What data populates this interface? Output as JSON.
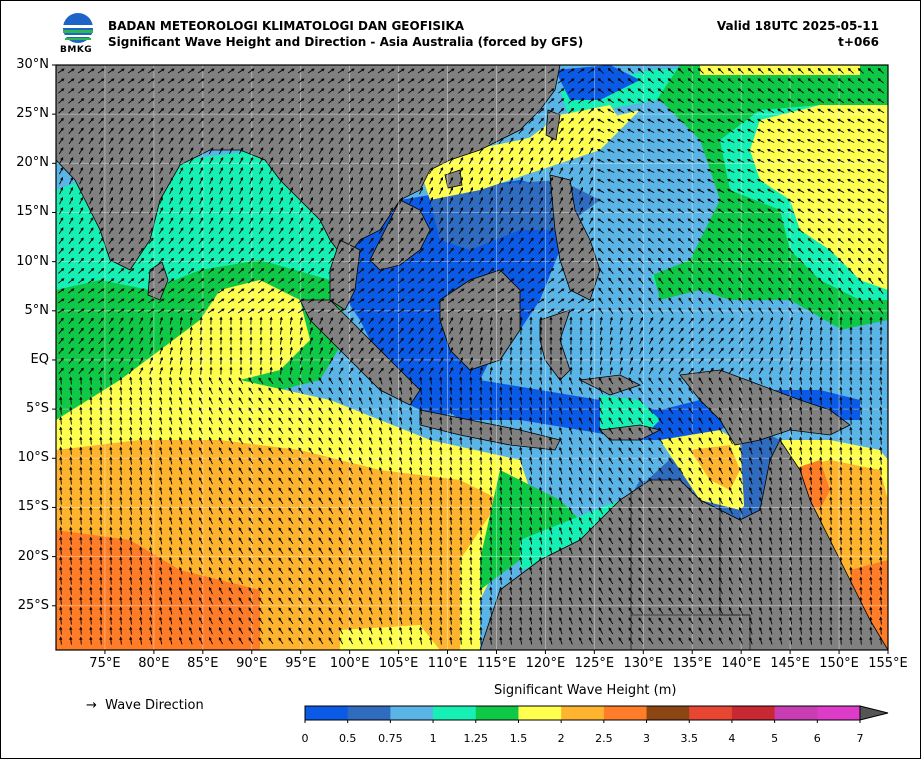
{
  "header": {
    "org": "BADAN METEOROLOGI KLIMATOLOGI DAN GEOFISIKA",
    "subtitle": "Significant Wave Height and Direction - Asia Australia (forced by GFS)",
    "valid": "Valid 18UTC 2025-05-11",
    "lead": "t+066",
    "logo_text": "BMKG"
  },
  "map": {
    "lon_range": [
      70,
      155
    ],
    "lat_range": [
      -29.5,
      30
    ],
    "lat_labels": [
      "30°N",
      "25°N",
      "20°N",
      "15°N",
      "10°N",
      "5°N",
      "EQ",
      "5°S",
      "10°S",
      "15°S",
      "20°S",
      "25°S"
    ],
    "lat_values": [
      30,
      25,
      20,
      15,
      10,
      5,
      0,
      -5,
      -10,
      -15,
      -20,
      -25
    ],
    "lon_labels": [
      "75°E",
      "80°E",
      "85°E",
      "90°E",
      "95°E",
      "100°E",
      "105°E",
      "110°E",
      "115°E",
      "120°E",
      "125°E",
      "130°E",
      "135°E",
      "140°E",
      "145°E",
      "150°E",
      "155°E"
    ],
    "lon_values": [
      75,
      80,
      85,
      90,
      95,
      100,
      105,
      110,
      115,
      120,
      125,
      130,
      135,
      140,
      145,
      150,
      155
    ],
    "land_color": "#808080",
    "grid": true
  },
  "legend": {
    "direction_symbol": "→",
    "direction_label": "Wave Direction"
  },
  "colorbar": {
    "title": "Significant Wave Height (m)",
    "ticks": [
      "0",
      "0.5",
      "0.75",
      "1",
      "1.25",
      "1.5",
      "2",
      "2.5",
      "3",
      "3.5",
      "4",
      "5",
      "6",
      "7"
    ],
    "colors": [
      "#0a5ae6",
      "#2f6cc0",
      "#5ab4e6",
      "#17f0b4",
      "#10c848",
      "#ffff50",
      "#ffb430",
      "#ff7d28",
      "#8c4614",
      "#e64632",
      "#c82832",
      "#c83cb4",
      "#dc3cc8"
    ]
  }
}
